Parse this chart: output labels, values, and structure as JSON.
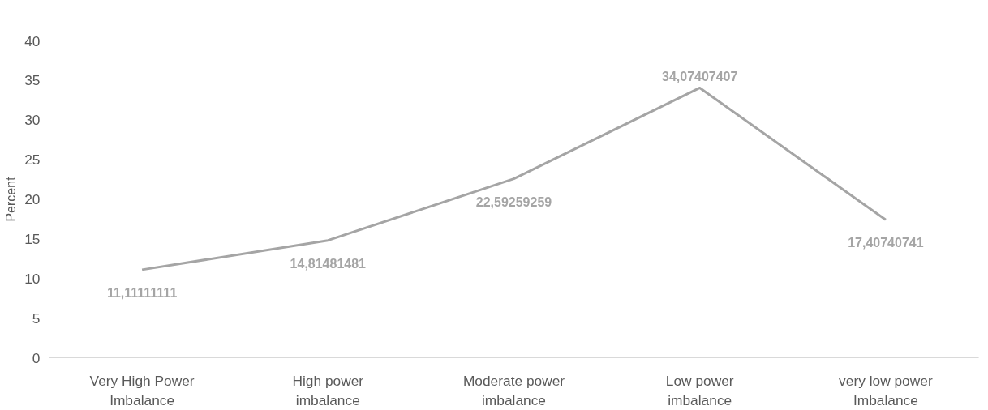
{
  "chart_data": {
    "type": "line",
    "ylabel": "Percent",
    "categories": [
      "Very High Power\nImbalance",
      "High power\nimbalance",
      "Moderate power\nimbalance",
      "Low power\nimbalance",
      "very low power\nImbalance"
    ],
    "series": [
      {
        "color": "#a5a5a5",
        "values": [
          11.11111111,
          14.81481481,
          22.59259259,
          34.07407407,
          17.40740741
        ],
        "value_labels": [
          "11,11111111",
          "14,81481481",
          "22,59259259",
          "34,07407407",
          "17,40740741"
        ]
      }
    ],
    "ylim": [
      0,
      40
    ],
    "yticks": [
      0,
      5,
      10,
      15,
      20,
      25,
      30,
      35,
      40
    ],
    "grid": false,
    "marker": "none",
    "line_style": "solid"
  }
}
